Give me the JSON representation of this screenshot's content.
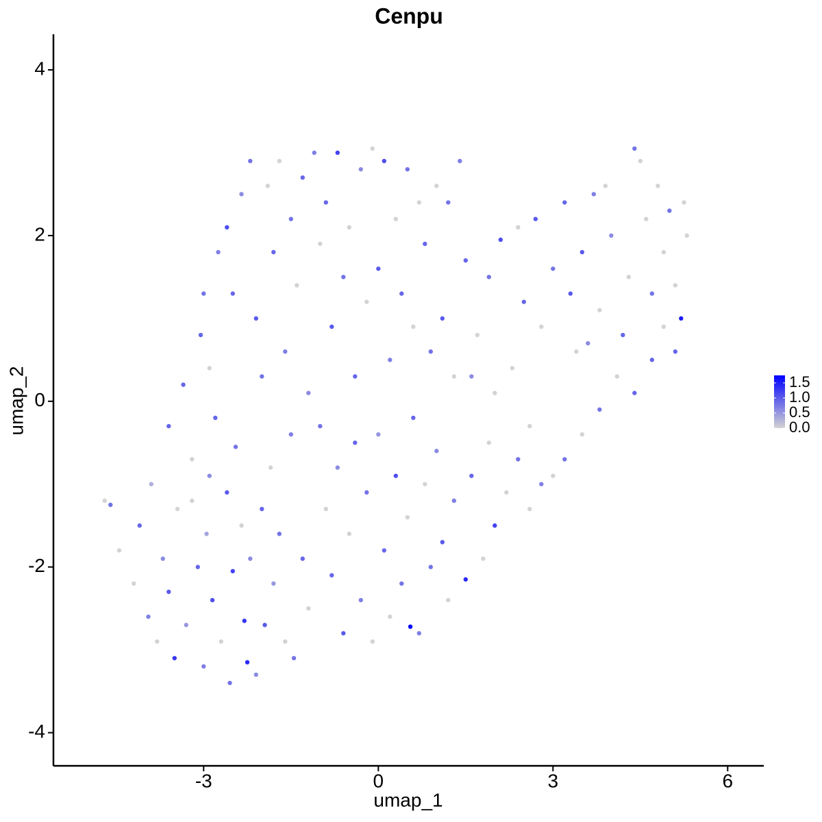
{
  "chart_data": {
    "type": "scatter",
    "title": "Cenpu",
    "xlabel": "umap_1",
    "ylabel": "umap_2",
    "xlim": [
      -5.58,
      6.62
    ],
    "ylim": [
      -4.4,
      4.43
    ],
    "xticks": [
      -3,
      0,
      3,
      6
    ],
    "yticks": [
      -4,
      -2,
      0,
      2,
      4
    ],
    "color_low": "#d3d3d3",
    "color_high": "#0000ff",
    "clim": [
      0,
      1.75
    ],
    "cticks": [
      {
        "value": 0,
        "label": "0.0"
      },
      0.5,
      {
        "value": 1,
        "label": "1.0"
      },
      1.5
    ],
    "x": [
      -4.7,
      -4.6,
      -4.45,
      -4.2,
      -4.1,
      -3.95,
      -3.8,
      -3.7,
      -3.6,
      -3.5,
      -3.45,
      -3.3,
      -3.2,
      -3.1,
      -3.0,
      -2.95,
      -2.85,
      -2.8,
      -2.7,
      -2.6,
      -2.55,
      -2.5,
      -2.45,
      -2.35,
      -2.3,
      -2.25,
      -2.2,
      -2.1,
      -2.0,
      -1.95,
      -1.85,
      -1.8,
      -1.7,
      -1.6,
      -1.5,
      -1.45,
      -1.3,
      -1.2,
      -3.9,
      -3.6,
      -3.35,
      -3.2,
      -3.05,
      -2.9,
      -3.0,
      -2.9,
      -2.75,
      -2.6,
      -2.5,
      -2.35,
      -2.2,
      -2.1,
      -2.0,
      -1.9,
      -1.8,
      -1.7,
      -1.6,
      -1.5,
      -1.4,
      -1.3,
      -1.2,
      -1.1,
      -1.0,
      -0.9,
      -0.8,
      -0.7,
      -0.6,
      -0.5,
      -0.4,
      -0.3,
      -0.2,
      -0.1,
      0,
      0.1,
      0.2,
      0.3,
      0.4,
      0.5,
      0.6,
      0.7,
      0.8,
      0.9,
      1.0,
      1.1,
      1.2,
      1.3,
      1.4,
      -1.0,
      -0.9,
      -0.8,
      -0.7,
      -0.6,
      -0.5,
      -0.4,
      -0.3,
      -0.2,
      -0.1,
      0,
      0.1,
      0.2,
      0.3,
      0.4,
      0.5,
      0.55,
      0.6,
      0.7,
      0.8,
      0.9,
      1.0,
      1.1,
      1.2,
      1.3,
      1.5,
      1.6,
      1.8,
      1.9,
      2.0,
      2.2,
      2.4,
      2.6,
      2.8,
      3.0,
      3.2,
      3.5,
      3.8,
      4.1,
      4.4,
      4.7,
      4.9,
      5.1,
      5.2,
      1.5,
      1.7,
      1.9,
      2.1,
      2.3,
      2.5,
      2.7,
      2.8,
      3.0,
      3.2,
      3.4,
      3.5,
      3.7,
      3.8,
      4.0,
      4.2,
      4.3,
      4.5,
      4.6,
      4.7,
      4.8,
      4.9,
      5.0,
      5.1,
      5.3,
      5.25,
      3.9,
      4.4,
      2.4,
      3.3,
      2.0,
      1.6,
      2.6,
      3.6
    ],
    "y": [
      -1.2,
      -1.25,
      -1.8,
      -2.2,
      -1.5,
      -2.6,
      -2.9,
      -1.9,
      -2.3,
      -3.1,
      -1.3,
      -2.7,
      -0.7,
      -2.0,
      -3.2,
      -1.6,
      -2.4,
      -0.2,
      -2.9,
      -1.1,
      -3.4,
      -2.05,
      -0.55,
      -1.5,
      -2.65,
      -3.15,
      -1.9,
      -3.3,
      -1.3,
      -2.7,
      -0.8,
      -2.2,
      -1.6,
      -2.9,
      -0.4,
      -3.1,
      -1.9,
      -2.5,
      -1.0,
      -0.3,
      0.2,
      -1.2,
      0.8,
      -0.9,
      1.3,
      0.4,
      1.8,
      2.1,
      1.3,
      2.5,
      2.9,
      1.0,
      0.3,
      2.6,
      1.8,
      2.9,
      0.6,
      2.2,
      1.4,
      2.7,
      0.1,
      3.0,
      1.9,
      2.4,
      0.9,
      3.0,
      1.5,
      2.1,
      0.3,
      2.8,
      1.2,
      3.05,
      1.6,
      2.9,
      0.5,
      2.2,
      1.3,
      2.8,
      0.9,
      2.4,
      1.9,
      0.6,
      2.6,
      1.0,
      2.4,
      0.3,
      2.9,
      -0.3,
      -1.3,
      -2.1,
      -0.8,
      -2.8,
      -1.6,
      -0.5,
      -2.4,
      -1.1,
      -2.9,
      -0.4,
      -1.8,
      -2.6,
      -0.9,
      -2.2,
      -1.4,
      -2.72,
      -0.2,
      -2.8,
      -1.0,
      -2.0,
      -0.6,
      -1.7,
      -2.4,
      -1.2,
      -2.15,
      -0.9,
      -1.9,
      -0.5,
      -1.5,
      -1.1,
      -0.7,
      -1.3,
      -1.0,
      -0.9,
      -0.7,
      -0.4,
      -0.1,
      0.3,
      0.1,
      0.5,
      0.9,
      0.6,
      1.0,
      1.7,
      0.8,
      1.5,
      1.95,
      0.4,
      1.2,
      2.2,
      0.9,
      1.6,
      2.4,
      0.6,
      1.8,
      2.5,
      1.1,
      2.0,
      0.8,
      1.5,
      2.9,
      2.2,
      1.3,
      2.6,
      1.8,
      2.3,
      1.4,
      2.0,
      2.4,
      2.6,
      3.05,
      2.1,
      1.3,
      0.1,
      0.3,
      -0.3,
      0.7
    ],
    "values": [
      0,
      0.8,
      0,
      0,
      0.9,
      0.7,
      0,
      0.6,
      1.0,
      1.3,
      0,
      0.5,
      0,
      0.9,
      0.7,
      0.4,
      1.1,
      0.9,
      0,
      1.0,
      0.8,
      1.2,
      0.8,
      0,
      1.3,
      1.4,
      0.6,
      0.6,
      0.9,
      1.0,
      0,
      0.5,
      0.8,
      0,
      0.7,
      0.8,
      0.9,
      0,
      0.3,
      0.9,
      0.9,
      0,
      0.9,
      0.6,
      0.8,
      0,
      0.7,
      1.1,
      0.9,
      0.6,
      0.8,
      1.0,
      0.8,
      0,
      0.9,
      0,
      0.7,
      0.8,
      0,
      0.9,
      0.6,
      0.7,
      0,
      0.9,
      1.0,
      1.2,
      0.8,
      0,
      0.9,
      0.6,
      0,
      0,
      1.0,
      1.1,
      0.7,
      0,
      0.9,
      0.8,
      0,
      0,
      0.9,
      0.8,
      0,
      1.0,
      0.8,
      0,
      0.7,
      0.8,
      0,
      0.9,
      0.6,
      1.0,
      0,
      0.9,
      0.7,
      0.8,
      0,
      0.5,
      0.9,
      0,
      1.1,
      0.8,
      0,
      1.7,
      0.9,
      0.7,
      0,
      0.8,
      0.6,
      1.0,
      0,
      0.7,
      1.4,
      0.9,
      0,
      0,
      1.2,
      0,
      0.8,
      0,
      0.7,
      0,
      0.8,
      0,
      0.8,
      0,
      0.9,
      0.9,
      0,
      0.9,
      1.5,
      0.9,
      0,
      0.8,
      1.1,
      0,
      0.9,
      1.0,
      0,
      0.8,
      0.9,
      0,
      1.0,
      0.7,
      0,
      0.6,
      0.9,
      0,
      0,
      0,
      0.8,
      0,
      0,
      0.8,
      0,
      0,
      0,
      0,
      0.8,
      0,
      1.0,
      0,
      0.6,
      0,
      0.6
    ]
  }
}
